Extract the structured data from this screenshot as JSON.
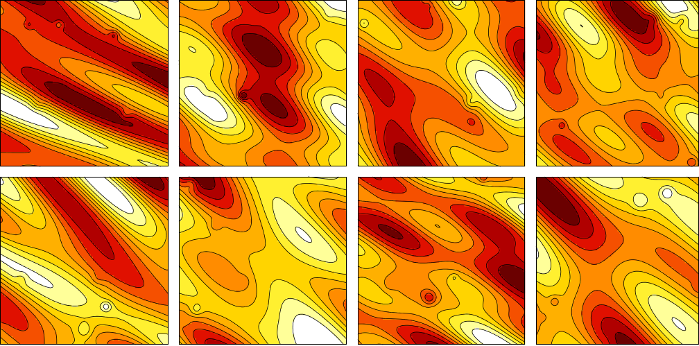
{
  "chart_data": [
    {
      "type": "contour",
      "colors": [
        "#6b0000",
        "#b00000",
        "#e01000",
        "#f55000",
        "#ff8c00",
        "#ffb000",
        "#ffd400",
        "#fff030",
        "#ffff99",
        "#ffffff"
      ]
    },
    {
      "type": "contour",
      "colors": [
        "#6b0000",
        "#b00000",
        "#e01000",
        "#f55000",
        "#ff8c00",
        "#ffb000",
        "#ffd400",
        "#fff030",
        "#ffff99",
        "#ffffff"
      ]
    },
    {
      "type": "contour",
      "colors": [
        "#6b0000",
        "#b00000",
        "#e01000",
        "#f55000",
        "#ff8c00",
        "#ffb000",
        "#ffd400",
        "#fff030",
        "#ffff99",
        "#ffffff"
      ]
    },
    {
      "type": "contour",
      "colors": [
        "#6b0000",
        "#b00000",
        "#e01000",
        "#f55000",
        "#ff8c00",
        "#ffb000",
        "#ffd400",
        "#fff030",
        "#ffff99",
        "#ffffff"
      ]
    },
    {
      "type": "contour",
      "colors": [
        "#6b0000",
        "#b00000",
        "#e01000",
        "#f55000",
        "#ff8c00",
        "#ffb000",
        "#ffd400",
        "#fff030",
        "#ffff99",
        "#ffffff"
      ]
    },
    {
      "type": "contour",
      "colors": [
        "#6b0000",
        "#b00000",
        "#e01000",
        "#f55000",
        "#ff8c00",
        "#ffb000",
        "#ffd400",
        "#fff030",
        "#ffff99",
        "#ffffff"
      ]
    },
    {
      "type": "contour",
      "colors": [
        "#6b0000",
        "#b00000",
        "#e01000",
        "#f55000",
        "#ff8c00",
        "#ffb000",
        "#ffd400",
        "#fff030",
        "#ffff99",
        "#ffffff"
      ]
    },
    {
      "type": "contour",
      "colors": [
        "#6b0000",
        "#b00000",
        "#e01000",
        "#f55000",
        "#ff8c00",
        "#ffb000",
        "#ffd400",
        "#fff030",
        "#ffff99",
        "#ffffff"
      ]
    }
  ]
}
